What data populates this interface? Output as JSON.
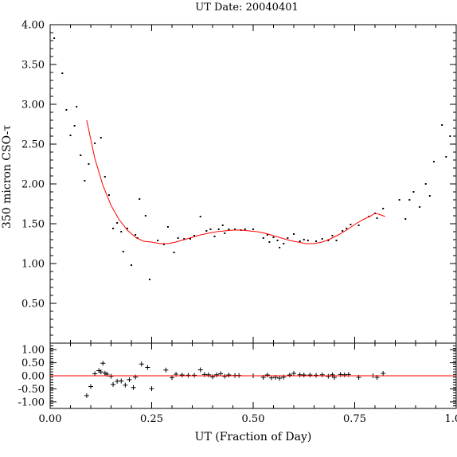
{
  "chart_data": {
    "title": "UT Date: 20040401",
    "xlabel": "UT (Fraction of Day)",
    "ylabel": "350 micron CSO-τ",
    "xlim": [
      0,
      1
    ],
    "x_ticks": [
      "0.00",
      "0.25",
      "0.50",
      "0.75",
      "1.00"
    ],
    "x_tick_values": [
      0,
      0.25,
      0.5,
      0.75,
      1.0
    ],
    "panels": [
      {
        "type": "scatter",
        "ylim": [
          0,
          4.0
        ],
        "y_ticks": [
          "0.50",
          "1.00",
          "1.50",
          "2.00",
          "2.50",
          "3.00",
          "3.50",
          "4.00"
        ],
        "y_tick_values": [
          0.5,
          1.0,
          1.5,
          2.0,
          2.5,
          3.0,
          3.5,
          4.0
        ],
        "series": [
          {
            "kind": "points",
            "color": "#000000",
            "points": [
              [
                0.01,
                3.83
              ],
              [
                0.03,
                3.39
              ],
              [
                0.04,
                2.93
              ],
              [
                0.05,
                2.61
              ],
              [
                0.06,
                2.73
              ],
              [
                0.065,
                2.97
              ],
              [
                0.075,
                2.36
              ],
              [
                0.085,
                2.04
              ],
              [
                0.095,
                2.25
              ],
              [
                0.11,
                2.51
              ],
              [
                0.125,
                2.58
              ],
              [
                0.135,
                2.09
              ],
              [
                0.145,
                1.86
              ],
              [
                0.155,
                1.44
              ],
              [
                0.165,
                1.51
              ],
              [
                0.175,
                1.4
              ],
              [
                0.18,
                1.15
              ],
              [
                0.19,
                1.44
              ],
              [
                0.2,
                0.98
              ],
              [
                0.21,
                1.36
              ],
              [
                0.215,
                1.32
              ],
              [
                0.22,
                1.81
              ],
              [
                0.235,
                1.6
              ],
              [
                0.245,
                0.8
              ],
              [
                0.265,
                1.29
              ],
              [
                0.28,
                1.24
              ],
              [
                0.29,
                1.46
              ],
              [
                0.305,
                1.14
              ],
              [
                0.315,
                1.32
              ],
              [
                0.33,
                1.31
              ],
              [
                0.345,
                1.31
              ],
              [
                0.355,
                1.35
              ],
              [
                0.37,
                1.59
              ],
              [
                0.385,
                1.41
              ],
              [
                0.395,
                1.43
              ],
              [
                0.405,
                1.34
              ],
              [
                0.415,
                1.43
              ],
              [
                0.425,
                1.48
              ],
              [
                0.43,
                1.38
              ],
              [
                0.44,
                1.43
              ],
              [
                0.455,
                1.43
              ],
              [
                0.47,
                1.42
              ],
              [
                0.48,
                1.43
              ],
              [
                0.5,
                1.43
              ],
              [
                0.525,
                1.32
              ],
              [
                0.535,
                1.36
              ],
              [
                0.54,
                1.27
              ],
              [
                0.55,
                1.33
              ],
              [
                0.56,
                1.29
              ],
              [
                0.565,
                1.2
              ],
              [
                0.575,
                1.25
              ],
              [
                0.585,
                1.32
              ],
              [
                0.6,
                1.37
              ],
              [
                0.615,
                1.28
              ],
              [
                0.625,
                1.3
              ],
              [
                0.635,
                1.29
              ],
              [
                0.655,
                1.28
              ],
              [
                0.67,
                1.31
              ],
              [
                0.685,
                1.29
              ],
              [
                0.695,
                1.35
              ],
              [
                0.705,
                1.29
              ],
              [
                0.72,
                1.41
              ],
              [
                0.73,
                1.44
              ],
              [
                0.74,
                1.49
              ],
              [
                0.76,
                1.48
              ],
              [
                0.785,
                1.59
              ],
              [
                0.8,
                1.63
              ],
              [
                0.805,
                1.57
              ],
              [
                0.82,
                1.69
              ],
              [
                0.86,
                1.8
              ],
              [
                0.875,
                1.56
              ],
              [
                0.885,
                1.8
              ],
              [
                0.895,
                1.9
              ],
              [
                0.91,
                1.71
              ],
              [
                0.925,
                2.0
              ],
              [
                0.935,
                1.85
              ],
              [
                0.945,
                2.28
              ],
              [
                0.965,
                2.74
              ],
              [
                0.975,
                2.34
              ],
              [
                0.985,
                2.6
              ]
            ]
          },
          {
            "kind": "line",
            "color": "#ff0000",
            "points": [
              [
                0.09,
                2.8
              ],
              [
                0.11,
                2.32
              ],
              [
                0.13,
                1.98
              ],
              [
                0.15,
                1.73
              ],
              [
                0.17,
                1.55
              ],
              [
                0.19,
                1.42
              ],
              [
                0.21,
                1.33
              ],
              [
                0.23,
                1.28
              ],
              [
                0.25,
                1.27
              ],
              [
                0.27,
                1.25
              ],
              [
                0.29,
                1.25
              ],
              [
                0.31,
                1.27
              ],
              [
                0.33,
                1.3
              ],
              [
                0.35,
                1.33
              ],
              [
                0.37,
                1.36
              ],
              [
                0.39,
                1.38
              ],
              [
                0.41,
                1.4
              ],
              [
                0.43,
                1.41
              ],
              [
                0.45,
                1.42
              ],
              [
                0.47,
                1.42
              ],
              [
                0.49,
                1.41
              ],
              [
                0.51,
                1.4
              ],
              [
                0.53,
                1.38
              ],
              [
                0.55,
                1.35
              ],
              [
                0.57,
                1.32
              ],
              [
                0.59,
                1.29
              ],
              [
                0.61,
                1.27
              ],
              [
                0.63,
                1.25
              ],
              [
                0.65,
                1.25
              ],
              [
                0.67,
                1.27
              ],
              [
                0.69,
                1.31
              ],
              [
                0.71,
                1.36
              ],
              [
                0.73,
                1.42
              ],
              [
                0.75,
                1.49
              ],
              [
                0.77,
                1.55
              ],
              [
                0.79,
                1.6
              ],
              [
                0.8,
                1.63
              ],
              [
                0.81,
                1.62
              ],
              [
                0.825,
                1.59
              ]
            ]
          }
        ]
      },
      {
        "type": "scatter",
        "ylim": [
          -1.25,
          1.25
        ],
        "y_ticks": [
          "-1.00",
          "-0.50",
          "0.00",
          "0.50",
          "1.00"
        ],
        "y_tick_values": [
          -1.0,
          -0.5,
          0.0,
          0.5,
          1.0
        ],
        "series": [
          {
            "kind": "crosses",
            "color": "#000000",
            "points": [
              [
                0.09,
                -0.76
              ],
              [
                0.1,
                -0.41
              ],
              [
                0.11,
                0.08
              ],
              [
                0.12,
                0.2
              ],
              [
                0.125,
                0.15
              ],
              [
                0.13,
                0.48
              ],
              [
                0.135,
                0.1
              ],
              [
                0.14,
                0.06
              ],
              [
                0.15,
                -0.02
              ],
              [
                0.155,
                -0.33
              ],
              [
                0.165,
                -0.21
              ],
              [
                0.175,
                -0.2
              ],
              [
                0.185,
                -0.36
              ],
              [
                0.195,
                -0.15
              ],
              [
                0.205,
                -0.45
              ],
              [
                0.21,
                -0.05
              ],
              [
                0.225,
                0.45
              ],
              [
                0.24,
                0.32
              ],
              [
                0.25,
                -0.49
              ],
              [
                0.285,
                0.22
              ],
              [
                0.3,
                -0.07
              ],
              [
                0.31,
                0.06
              ],
              [
                0.325,
                0.03
              ],
              [
                0.34,
                0.02
              ],
              [
                0.355,
                0.02
              ],
              [
                0.37,
                0.23
              ],
              [
                0.38,
                0.05
              ],
              [
                0.39,
                0.04
              ],
              [
                0.4,
                -0.04
              ],
              [
                0.41,
                0.04
              ],
              [
                0.42,
                0.08
              ],
              [
                0.43,
                -0.02
              ],
              [
                0.44,
                0.03
              ],
              [
                0.455,
                0.01
              ],
              [
                0.465,
                0.01
              ],
              [
                0.5,
                0.0
              ],
              [
                0.525,
                -0.06
              ],
              [
                0.535,
                0.03
              ],
              [
                0.545,
                -0.08
              ],
              [
                0.555,
                -0.06
              ],
              [
                0.565,
                -0.09
              ],
              [
                0.575,
                -0.05
              ],
              [
                0.59,
                0.03
              ],
              [
                0.6,
                0.09
              ],
              [
                0.615,
                0.04
              ],
              [
                0.625,
                0.03
              ],
              [
                0.64,
                0.03
              ],
              [
                0.655,
                0.02
              ],
              [
                0.67,
                0.04
              ],
              [
                0.685,
                -0.02
              ],
              [
                0.695,
                0.04
              ],
              [
                0.7,
                -0.06
              ],
              [
                0.715,
                0.05
              ],
              [
                0.725,
                0.04
              ],
              [
                0.735,
                0.05
              ],
              [
                0.76,
                -0.06
              ],
              [
                0.795,
                0.0
              ],
              [
                0.805,
                -0.06
              ],
              [
                0.82,
                0.09
              ]
            ]
          },
          {
            "kind": "line",
            "color": "#ff0000",
            "points": [
              [
                0,
                0
              ],
              [
                1,
                0
              ]
            ]
          }
        ]
      }
    ]
  }
}
